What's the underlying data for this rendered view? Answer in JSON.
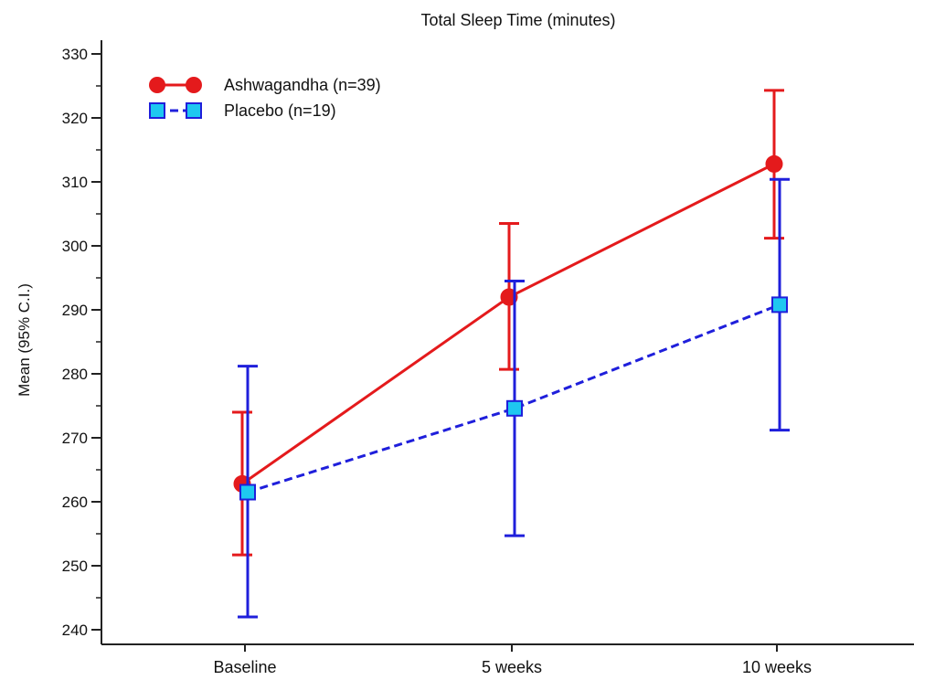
{
  "chart_data": {
    "type": "line",
    "title": "Total Sleep Time (minutes)",
    "xlabel": "",
    "ylabel": "Mean  (95% C.I.)",
    "categories": [
      "Baseline",
      "5 weeks",
      "10 weeks"
    ],
    "ylim": [
      238,
      332
    ],
    "yticks": [
      240,
      250,
      260,
      270,
      280,
      290,
      300,
      310,
      320,
      330
    ],
    "grid": false,
    "legend": "top-left",
    "series": [
      {
        "name": "Ashwagandha (n=39)",
        "values": [
          262.8,
          292.0,
          312.8
        ],
        "ci_lower": [
          251.7,
          280.7,
          301.2
        ],
        "ci_upper": [
          274.0,
          303.5,
          324.3
        ],
        "color": "#e41a1c",
        "marker": "circle",
        "linestyle": "solid"
      },
      {
        "name": "Placebo (n=19)",
        "values": [
          261.5,
          274.6,
          290.8
        ],
        "ci_lower": [
          242.0,
          254.7,
          271.2
        ],
        "ci_upper": [
          281.2,
          294.5,
          310.4
        ],
        "color": "#1f1fdb",
        "marker_fill": "#1ec8f0",
        "marker": "square",
        "linestyle": "dashed"
      }
    ]
  }
}
